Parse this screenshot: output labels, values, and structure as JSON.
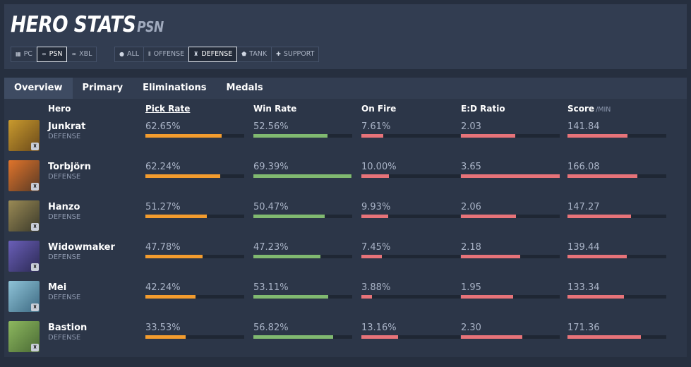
{
  "title": "HERO STATS",
  "platform_tag": "PSN",
  "platform_filters": [
    {
      "label": "PC",
      "icon": "windows-icon",
      "active": false
    },
    {
      "label": "PSN",
      "icon": "gamepad-icon",
      "active": true
    },
    {
      "label": "XBL",
      "icon": "gamepad-icon",
      "active": false
    }
  ],
  "role_filters": [
    {
      "label": "ALL",
      "icon": "globe-icon",
      "active": false
    },
    {
      "label": "OFFENSE",
      "icon": "bullets-icon",
      "active": false
    },
    {
      "label": "DEFENSE",
      "icon": "tower-icon",
      "active": true
    },
    {
      "label": "TANK",
      "icon": "shield-icon",
      "active": false
    },
    {
      "label": "SUPPORT",
      "icon": "plus-icon",
      "active": false
    }
  ],
  "tabs": [
    "Overview",
    "Primary",
    "Eliminations",
    "Medals"
  ],
  "active_tab": "Overview",
  "columns": {
    "hero": "Hero",
    "pick_rate": "Pick Rate",
    "win_rate": "Win Rate",
    "on_fire": "On Fire",
    "ed_ratio": "E:D Ratio",
    "score": "Score",
    "score_unit": "/MIN"
  },
  "heroes": [
    {
      "name": "Junkrat",
      "role": "DEFENSE",
      "pick_rate": "62.65%",
      "pick_fill": 0.77,
      "win_rate": "52.56%",
      "win_fill": 0.75,
      "on_fire": "7.61%",
      "fire_fill": 0.22,
      "ed_ratio": "2.03",
      "ed_fill": 0.55,
      "score": "141.84",
      "score_fill": 0.61,
      "colors": [
        "#c99a2e",
        "#6b4a1a"
      ]
    },
    {
      "name": "Torbjörn",
      "role": "DEFENSE",
      "pick_rate": "62.24%",
      "pick_fill": 0.76,
      "win_rate": "69.39%",
      "win_fill": 0.99,
      "on_fire": "10.00%",
      "fire_fill": 0.28,
      "ed_ratio": "3.65",
      "ed_fill": 1.0,
      "score": "166.08",
      "score_fill": 0.71,
      "colors": [
        "#e0742b",
        "#5a3a24"
      ]
    },
    {
      "name": "Hanzo",
      "role": "DEFENSE",
      "pick_rate": "51.27%",
      "pick_fill": 0.62,
      "win_rate": "50.47%",
      "win_fill": 0.72,
      "on_fire": "9.93%",
      "fire_fill": 0.27,
      "ed_ratio": "2.06",
      "ed_fill": 0.56,
      "score": "147.27",
      "score_fill": 0.64,
      "colors": [
        "#9a8a55",
        "#3b3a2a"
      ]
    },
    {
      "name": "Widowmaker",
      "role": "DEFENSE",
      "pick_rate": "47.78%",
      "pick_fill": 0.58,
      "win_rate": "47.23%",
      "win_fill": 0.68,
      "on_fire": "7.45%",
      "fire_fill": 0.21,
      "ed_ratio": "2.18",
      "ed_fill": 0.6,
      "score": "139.44",
      "score_fill": 0.6,
      "colors": [
        "#6a5fb8",
        "#2c2a55"
      ]
    },
    {
      "name": "Mei",
      "role": "DEFENSE",
      "pick_rate": "42.24%",
      "pick_fill": 0.51,
      "win_rate": "53.11%",
      "win_fill": 0.76,
      "on_fire": "3.88%",
      "fire_fill": 0.11,
      "ed_ratio": "1.95",
      "ed_fill": 0.53,
      "score": "133.34",
      "score_fill": 0.57,
      "colors": [
        "#8fc3d8",
        "#3d6a82"
      ]
    },
    {
      "name": "Bastion",
      "role": "DEFENSE",
      "pick_rate": "33.53%",
      "pick_fill": 0.41,
      "win_rate": "56.82%",
      "win_fill": 0.81,
      "on_fire": "13.16%",
      "fire_fill": 0.37,
      "ed_ratio": "2.30",
      "ed_fill": 0.62,
      "score": "171.36",
      "score_fill": 0.74,
      "colors": [
        "#8db85f",
        "#4a6a34"
      ]
    }
  ]
}
